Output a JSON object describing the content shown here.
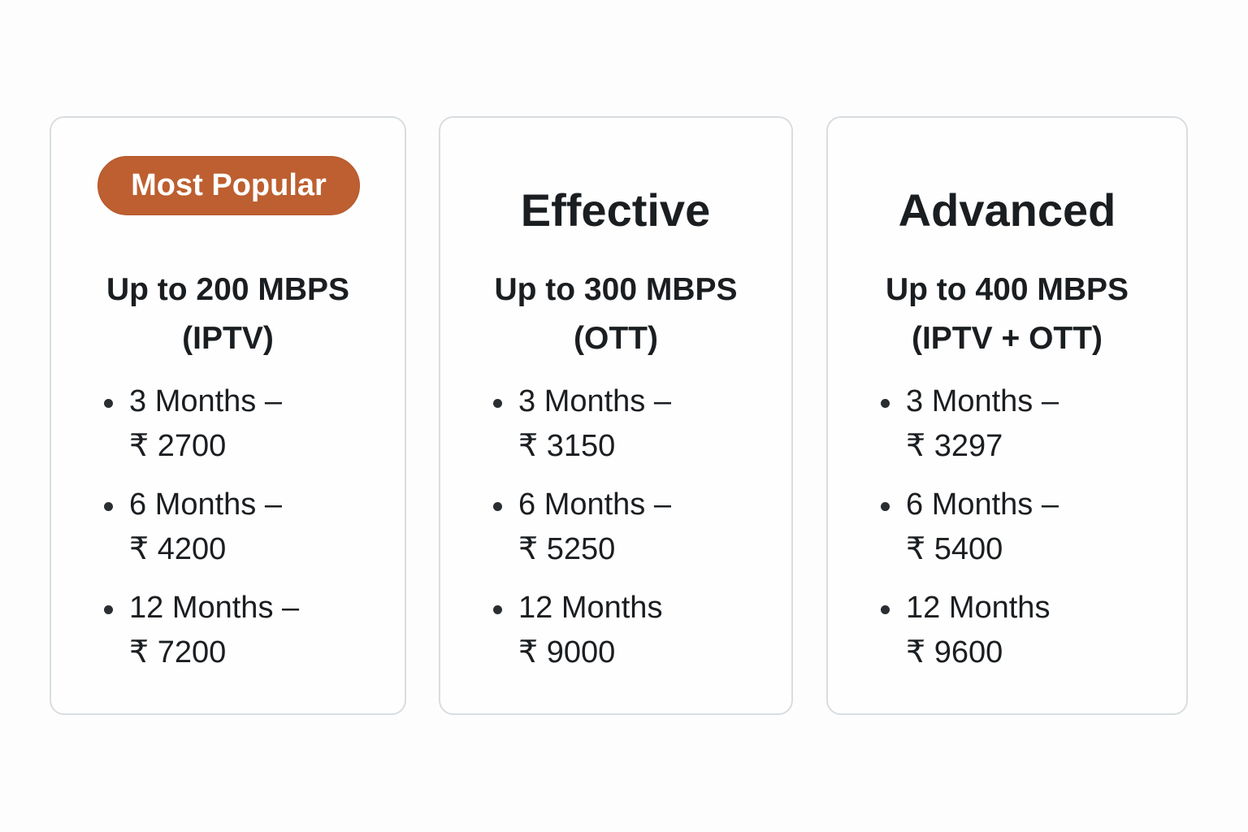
{
  "plans": [
    {
      "badge": "Most Popular",
      "speed_line1": "Up to 200 MBPS",
      "speed_line2": "(IPTV)",
      "prices": [
        {
          "period": "3 Months –",
          "price": "₹ 2700"
        },
        {
          "period": "6 Months –",
          "price": "₹ 4200"
        },
        {
          "period": "12 Months –",
          "price": "₹ 7200"
        }
      ]
    },
    {
      "title": "Effective",
      "speed_line1": "Up to 300 MBPS",
      "speed_line2": "(OTT)",
      "prices": [
        {
          "period": "3 Months –",
          "price": "₹ 3150"
        },
        {
          "period": "6 Months –",
          "price": "₹ 5250"
        },
        {
          "period": "12 Months",
          "price": "₹ 9000"
        }
      ]
    },
    {
      "title": "Advanced",
      "speed_line1": "Up to 400 MBPS",
      "speed_line2": "(IPTV + OTT)",
      "prices": [
        {
          "period": "3 Months –",
          "price": "₹ 3297"
        },
        {
          "period": "6 Months –",
          "price": "₹ 5400"
        },
        {
          "period": "12 Months",
          "price": "₹ 9600"
        }
      ]
    }
  ],
  "colors": {
    "badge": "#bd5f30",
    "border": "#d9dde0",
    "text": "#1b1e21"
  }
}
